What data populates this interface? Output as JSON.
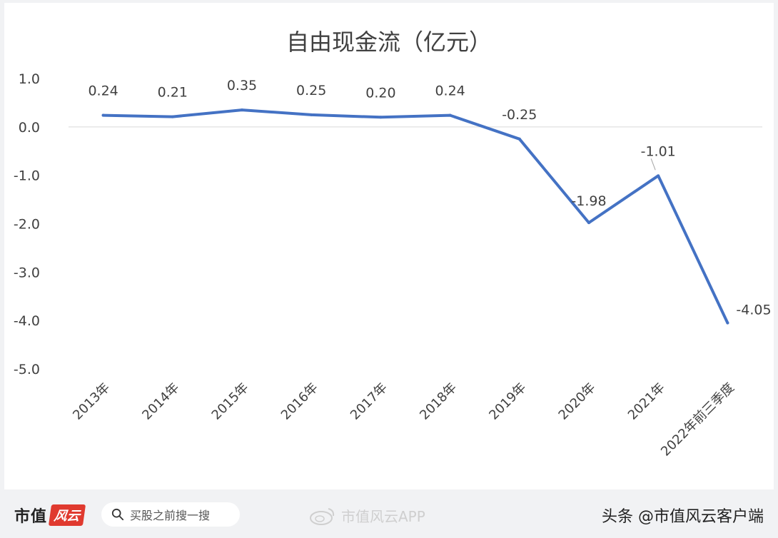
{
  "chart_data": {
    "type": "line",
    "title": "自由现金流（亿元）",
    "categories": [
      "2013年",
      "2014年",
      "2015年",
      "2016年",
      "2017年",
      "2018年",
      "2019年",
      "2020年",
      "2021年",
      "2022年前三季度"
    ],
    "series": [
      {
        "values": [
          0.24,
          0.21,
          0.35,
          0.25,
          0.2,
          0.24,
          -0.25,
          -1.98,
          -1.01,
          -4.05
        ],
        "labels": [
          "0.24",
          "0.21",
          "0.35",
          "0.25",
          "0.20",
          "0.24",
          "-0.25",
          "-1.98",
          "-1.01",
          "-4.05"
        ]
      }
    ],
    "ylim": [
      -5.0,
      1.0
    ],
    "yticks": [
      1.0,
      0.0,
      -1.0,
      -2.0,
      -3.0,
      -4.0,
      -5.0
    ],
    "ytick_labels": [
      "1.0",
      "0.0",
      "-1.0",
      "-2.0",
      "-3.0",
      "-4.0",
      "-5.0"
    ],
    "line_color": "#4472c4",
    "grid": false,
    "legend": "none"
  },
  "footer": {
    "brand_name": "市值",
    "brand_mark": "风云",
    "search_placeholder": "买股之前搜一搜",
    "app_watermark": "市值风云APP",
    "attribution": "头条 @市值风云客户端"
  }
}
